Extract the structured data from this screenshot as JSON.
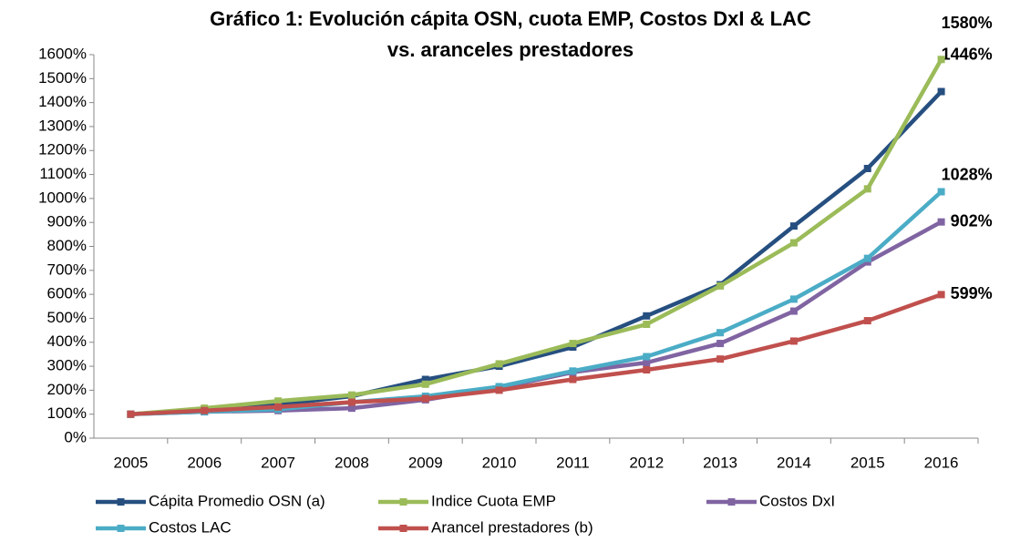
{
  "chart_data": {
    "type": "line",
    "title": [
      "Gráfico 1: Evolución cápita OSN, cuota EMP, Costos DxI & LAC",
      "vs. aranceles prestadores"
    ],
    "categories": [
      "2005",
      "2006",
      "2007",
      "2008",
      "2009",
      "2010",
      "2011",
      "2012",
      "2013",
      "2014",
      "2015",
      "2016"
    ],
    "series": [
      {
        "name": "Cápita Promedio OSN (a)",
        "color": "#264f80",
        "values": [
          100,
          120,
          140,
          175,
          245,
          300,
          380,
          510,
          640,
          885,
          1125,
          1446
        ],
        "value_labels": [
          null,
          null,
          null,
          null,
          null,
          null,
          null,
          null,
          null,
          null,
          null,
          "1446%"
        ]
      },
      {
        "name": "Indice Cuota EMP",
        "color": "#9bbb59",
        "values": [
          100,
          125,
          155,
          180,
          225,
          310,
          395,
          475,
          635,
          815,
          1040,
          1580
        ],
        "value_labels": [
          null,
          null,
          null,
          null,
          null,
          null,
          null,
          null,
          null,
          null,
          null,
          "1580%"
        ]
      },
      {
        "name": "Costos DxI",
        "color": "#8064a2",
        "values": [
          100,
          110,
          115,
          125,
          160,
          210,
          275,
          315,
          395,
          530,
          735,
          902
        ],
        "value_labels": [
          null,
          null,
          null,
          null,
          null,
          null,
          null,
          null,
          null,
          null,
          null,
          "902%"
        ]
      },
      {
        "name": "Costos LAC",
        "color": "#4bacc6",
        "values": [
          100,
          110,
          120,
          150,
          175,
          215,
          280,
          340,
          440,
          580,
          750,
          1028
        ],
        "value_labels": [
          null,
          null,
          null,
          null,
          null,
          null,
          null,
          null,
          null,
          null,
          null,
          "1028%"
        ]
      },
      {
        "name": "Arancel prestadores (b)",
        "color": "#c0504d",
        "values": [
          100,
          115,
          130,
          150,
          165,
          200,
          245,
          285,
          330,
          405,
          490,
          599
        ],
        "value_labels": [
          null,
          null,
          null,
          null,
          null,
          null,
          null,
          null,
          null,
          null,
          null,
          "599%"
        ]
      }
    ],
    "ylim": [
      0,
      1600
    ],
    "yticks": [
      {
        "value": 0,
        "label": "0%"
      },
      {
        "value": 100,
        "label": "100%"
      },
      {
        "value": 200,
        "label": "200%"
      },
      {
        "value": 300,
        "label": "300%"
      },
      {
        "value": 400,
        "label": "400%"
      },
      {
        "value": 500,
        "label": "500%"
      },
      {
        "value": 600,
        "label": "600%"
      },
      {
        "value": 700,
        "label": "700%"
      },
      {
        "value": 800,
        "label": "800%"
      },
      {
        "value": 900,
        "label": "900%"
      },
      {
        "value": 1000,
        "label": "1000%"
      },
      {
        "value": 1100,
        "label": "1100%"
      },
      {
        "value": 1200,
        "label": "1200%"
      },
      {
        "value": 1300,
        "label": "1300%"
      },
      {
        "value": 1400,
        "label": "1400%"
      },
      {
        "value": 1500,
        "label": "1500%"
      },
      {
        "value": 1600,
        "label": "1600%"
      }
    ],
    "grid": false,
    "legend": "bottom"
  }
}
